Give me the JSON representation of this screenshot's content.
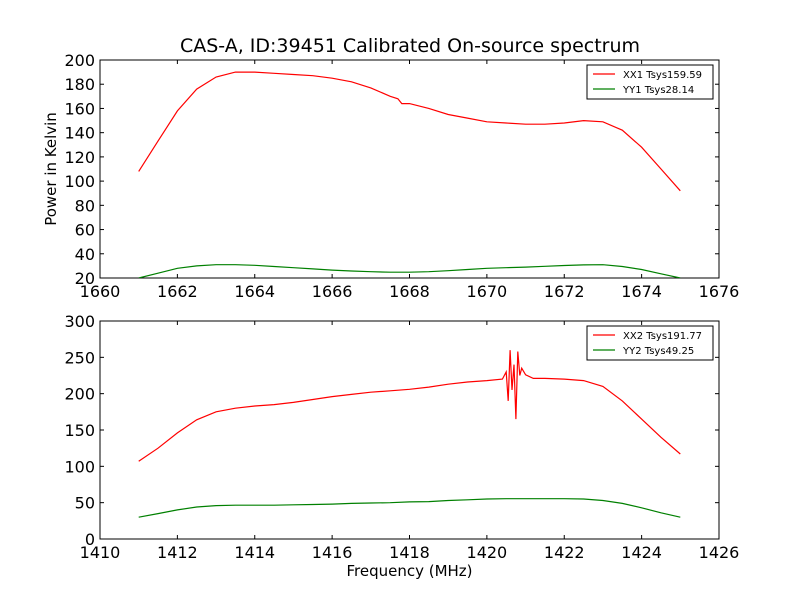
{
  "figure": {
    "title": "CAS-A, ID:39451 Calibrated On-source spectrum"
  },
  "chart_data": [
    {
      "type": "line",
      "title": "CAS-A, ID:39451 Calibrated On-source spectrum",
      "xlabel": "",
      "ylabel": "Power in Kelvin",
      "xlim": [
        1660,
        1676
      ],
      "ylim": [
        20,
        200
      ],
      "xticks": [
        1660,
        1662,
        1664,
        1666,
        1668,
        1670,
        1672,
        1674,
        1676
      ],
      "yticks": [
        20,
        40,
        60,
        80,
        100,
        120,
        140,
        160,
        180,
        200
      ],
      "grid": false,
      "legend_position": "top-right",
      "series": [
        {
          "name": "XX1 Tsys159.59",
          "color": "#ff0000",
          "x": [
            1661.0,
            1661.5,
            1662.0,
            1662.5,
            1663.0,
            1663.5,
            1664.0,
            1664.5,
            1665.0,
            1665.5,
            1666.0,
            1666.5,
            1667.0,
            1667.5,
            1667.7,
            1667.8,
            1668.0,
            1668.5,
            1669.0,
            1669.5,
            1670.0,
            1670.5,
            1671.0,
            1671.5,
            1672.0,
            1672.5,
            1673.0,
            1673.5,
            1674.0,
            1674.5,
            1675.0
          ],
          "y": [
            108,
            133,
            158,
            176,
            186,
            190,
            190,
            189,
            188,
            187,
            185,
            182,
            177,
            170,
            168,
            164,
            164,
            160,
            155,
            152,
            149,
            148,
            147,
            147,
            148,
            150,
            149,
            142,
            128,
            110,
            92
          ]
        },
        {
          "name": "YY1 Tsys28.14",
          "color": "#008000",
          "x": [
            1661.0,
            1661.5,
            1662.0,
            1662.5,
            1663.0,
            1663.5,
            1664.0,
            1664.5,
            1665.0,
            1665.5,
            1666.0,
            1666.5,
            1667.0,
            1667.5,
            1668.0,
            1668.5,
            1669.0,
            1669.5,
            1670.0,
            1670.5,
            1671.0,
            1671.5,
            1672.0,
            1672.5,
            1673.0,
            1673.5,
            1674.0,
            1674.5,
            1675.0
          ],
          "y": [
            20,
            24,
            28,
            30,
            31,
            31,
            30.5,
            29.5,
            28.5,
            27.5,
            26.5,
            25.8,
            25.2,
            24.8,
            24.8,
            25.2,
            26,
            27,
            28,
            28.5,
            29,
            29.7,
            30.3,
            30.8,
            31,
            29.5,
            27,
            23.5,
            20
          ]
        }
      ]
    },
    {
      "type": "line",
      "title": "",
      "xlabel": "Frequency (MHz)",
      "ylabel": "",
      "xlim": [
        1410,
        1426
      ],
      "ylim": [
        0,
        300
      ],
      "xticks": [
        1410,
        1412,
        1414,
        1416,
        1418,
        1420,
        1422,
        1424,
        1426
      ],
      "yticks": [
        0,
        50,
        100,
        150,
        200,
        250,
        300
      ],
      "grid": false,
      "legend_position": "top-right",
      "series": [
        {
          "name": "XX2 Tsys191.77",
          "color": "#ff0000",
          "x": [
            1411.0,
            1411.5,
            1412.0,
            1412.5,
            1413.0,
            1413.5,
            1414.0,
            1414.5,
            1415.0,
            1415.5,
            1416.0,
            1416.5,
            1417.0,
            1417.5,
            1418.0,
            1418.5,
            1419.0,
            1419.5,
            1420.0,
            1420.4,
            1420.5,
            1420.55,
            1420.6,
            1420.65,
            1420.7,
            1420.75,
            1420.8,
            1420.85,
            1420.9,
            1421.0,
            1421.2,
            1421.5,
            1422.0,
            1422.5,
            1423.0,
            1423.5,
            1424.0,
            1424.5,
            1425.0
          ],
          "y": [
            107,
            125,
            146,
            164,
            175,
            180,
            183,
            185,
            188,
            192,
            196,
            199,
            202,
            204,
            206,
            209,
            213,
            216,
            218,
            220,
            230,
            190,
            260,
            205,
            240,
            165,
            258,
            225,
            235,
            226,
            221,
            221,
            220,
            218,
            210,
            190,
            165,
            140,
            117
          ]
        },
        {
          "name": "YY2 Tsys49.25",
          "color": "#008000",
          "x": [
            1411.0,
            1411.5,
            1412.0,
            1412.5,
            1413.0,
            1413.5,
            1414.0,
            1414.5,
            1415.0,
            1415.5,
            1416.0,
            1416.5,
            1417.0,
            1417.5,
            1418.0,
            1418.5,
            1419.0,
            1419.5,
            1420.0,
            1420.5,
            1421.0,
            1421.5,
            1422.0,
            1422.5,
            1423.0,
            1423.5,
            1424.0,
            1424.5,
            1425.0
          ],
          "y": [
            30,
            35,
            40,
            44,
            46,
            46.5,
            46.5,
            46.5,
            47,
            47.5,
            48,
            49,
            49.5,
            50,
            51,
            51.5,
            53,
            54,
            55,
            55.5,
            55.5,
            55.5,
            55.5,
            55,
            53,
            49,
            43,
            36,
            30
          ]
        }
      ]
    }
  ]
}
